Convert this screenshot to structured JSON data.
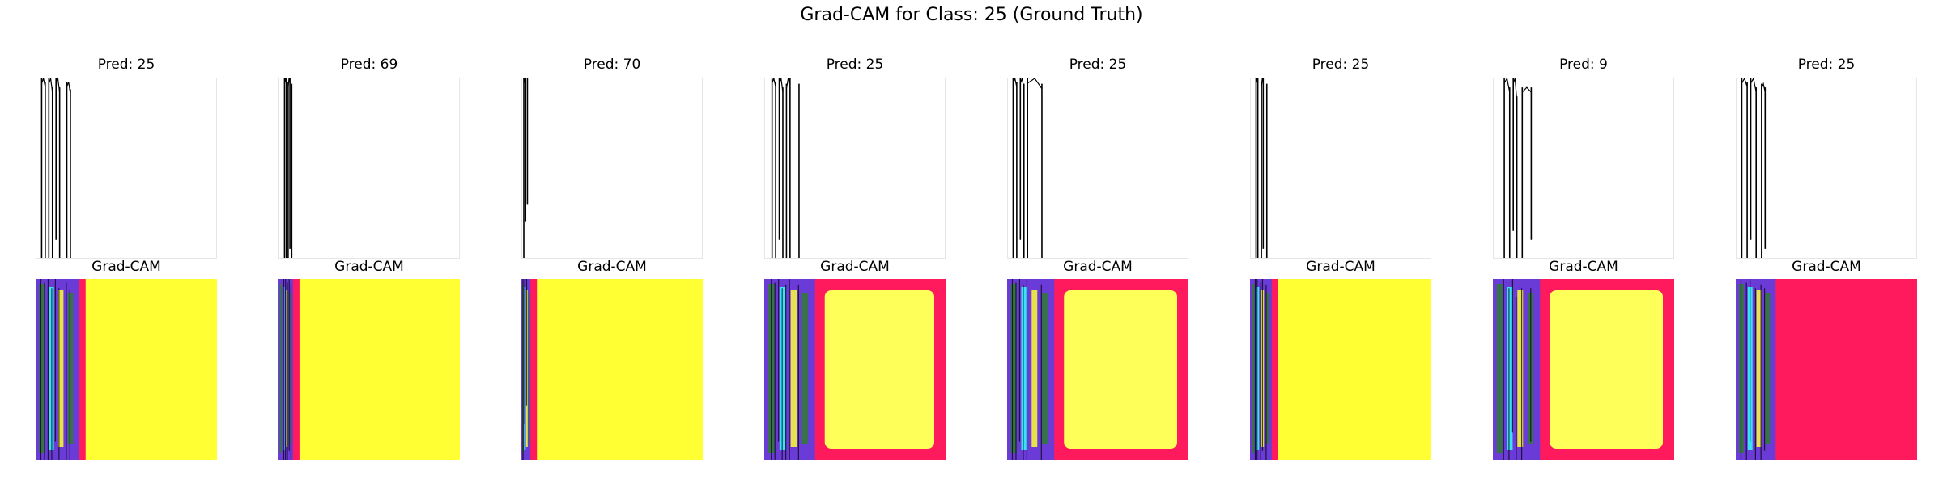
{
  "figure": {
    "title": "Grad-CAM for Class: 25 (Ground Truth)"
  },
  "chart_data": {
    "type": "image-grid",
    "rows": 2,
    "columns": 8,
    "title": "Grad-CAM for Class: 25 (Ground Truth)",
    "cam_row_title": "Grad-CAM",
    "panels": [
      {
        "pred_label": "Pred: 25",
        "predicted_class": 25,
        "strokes": [
          [
            0.02,
            0.0,
            0.02,
            1.0
          ],
          [
            0.04,
            0.02,
            0.04,
            1.0
          ],
          [
            0.06,
            0.0,
            0.06,
            1.0
          ],
          [
            0.08,
            0.05,
            0.08,
            1.0
          ],
          [
            0.1,
            0.0,
            0.1,
            0.9
          ],
          [
            0.12,
            0.05,
            0.12,
            1.0
          ],
          [
            0.16,
            0.02,
            0.16,
            1.0
          ],
          [
            0.18,
            0.06,
            0.18,
            1.0
          ]
        ],
        "strip_fraction": 0.24,
        "cam_frame": false
      },
      {
        "pred_label": "Pred: 69",
        "predicted_class": 69,
        "strokes": [
          [
            0.02,
            0.0,
            0.02,
            1.0
          ],
          [
            0.03,
            0.0,
            0.03,
            1.0
          ],
          [
            0.04,
            0.02,
            0.04,
            1.0
          ],
          [
            0.05,
            0.0,
            0.05,
            0.95
          ],
          [
            0.06,
            0.03,
            0.06,
            1.0
          ]
        ],
        "strip_fraction": 0.08,
        "cam_frame": false
      },
      {
        "pred_label": "Pred: 70",
        "predicted_class": 70,
        "strokes": [
          [
            0.0,
            0.0,
            0.0,
            1.0
          ],
          [
            0.01,
            0.0,
            0.01,
            0.8
          ],
          [
            0.02,
            0.0,
            0.02,
            0.7
          ]
        ],
        "strip_fraction": 0.05,
        "cam_frame": false
      },
      {
        "pred_label": "Pred: 25",
        "predicted_class": 25,
        "strokes": [
          [
            0.03,
            0.0,
            0.03,
            1.0
          ],
          [
            0.05,
            0.02,
            0.05,
            1.0
          ],
          [
            0.07,
            0.0,
            0.07,
            0.9
          ],
          [
            0.09,
            0.05,
            0.09,
            1.0
          ],
          [
            0.11,
            0.03,
            0.11,
            1.0
          ],
          [
            0.13,
            0.0,
            0.13,
            1.0
          ],
          [
            0.18,
            0.03,
            0.18,
            1.0
          ]
        ],
        "strip_fraction": 0.28,
        "cam_frame": true
      },
      {
        "pred_label": "Pred: 25",
        "predicted_class": 25,
        "strokes": [
          [
            0.02,
            0.0,
            0.02,
            1.0
          ],
          [
            0.04,
            0.02,
            0.04,
            1.0
          ],
          [
            0.06,
            0.0,
            0.06,
            0.9
          ],
          [
            0.08,
            0.03,
            0.08,
            1.0
          ],
          [
            0.1,
            0.0,
            0.1,
            1.0
          ],
          [
            0.18,
            0.03,
            0.18,
            1.0
          ]
        ],
        "strip_fraction": 0.26,
        "cam_frame": true
      },
      {
        "pred_label": "Pred: 25",
        "predicted_class": 25,
        "strokes": [
          [
            0.02,
            0.0,
            0.02,
            1.0
          ],
          [
            0.03,
            0.0,
            0.03,
            1.0
          ],
          [
            0.05,
            0.02,
            0.05,
            1.0
          ],
          [
            0.06,
            0.0,
            0.06,
            0.95
          ],
          [
            0.08,
            0.03,
            0.08,
            1.0
          ]
        ],
        "strip_fraction": 0.12,
        "cam_frame": false
      },
      {
        "pred_label": "Pred: 9",
        "predicted_class": 9,
        "strokes": [
          [
            0.05,
            0.0,
            0.05,
            1.0
          ],
          [
            0.08,
            0.05,
            0.08,
            1.0
          ],
          [
            0.1,
            0.0,
            0.1,
            0.85
          ],
          [
            0.12,
            0.1,
            0.12,
            1.0
          ],
          [
            0.15,
            0.05,
            0.15,
            1.0
          ],
          [
            0.2,
            0.05,
            0.2,
            0.9
          ]
        ],
        "strip_fraction": 0.26,
        "cam_frame": true
      },
      {
        "pred_label": "Pred: 25",
        "predicted_class": 25,
        "strokes": [
          [
            0.02,
            0.0,
            0.02,
            1.0
          ],
          [
            0.05,
            0.02,
            0.05,
            1.0
          ],
          [
            0.07,
            0.0,
            0.07,
            0.9
          ],
          [
            0.1,
            0.05,
            0.1,
            1.0
          ],
          [
            0.13,
            0.03,
            0.13,
            1.0
          ],
          [
            0.15,
            0.05,
            0.15,
            0.95
          ]
        ],
        "strip_fraction": 0.22,
        "cam_frame": "full"
      }
    ]
  },
  "colors": {
    "cam_yellow": "#ffff33",
    "cam_light_yellow": "#ffff5a",
    "cam_pink": "#ff1a5e",
    "cam_purple": "#6a3bd6",
    "cam_cyan": "#33ffff",
    "cam_green": "#2e7d32",
    "stroke": "#000000"
  }
}
